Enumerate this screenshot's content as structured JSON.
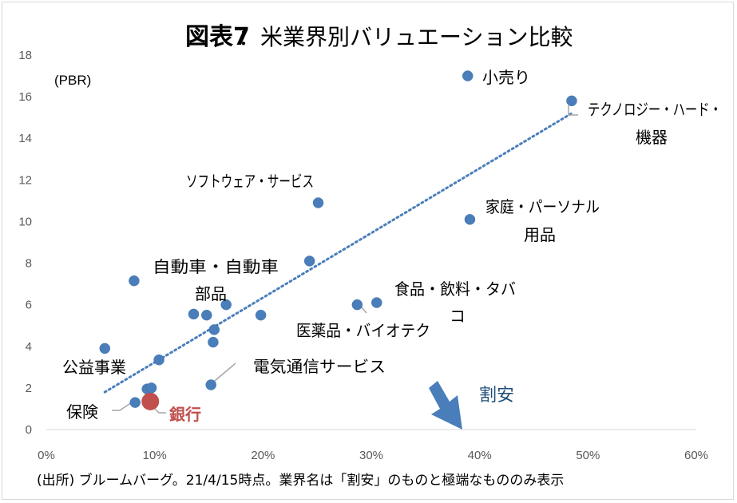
{
  "chart_data": {
    "type": "scatter",
    "title": "図表7",
    "subtitle": "：米業界別バリュエーション比較",
    "ylabel": "(PBR)",
    "xlim": [
      0,
      0.6
    ],
    "ylim": [
      0,
      18
    ],
    "x_ticks": [
      0,
      0.1,
      0.2,
      0.3,
      0.4,
      0.5,
      0.6
    ],
    "x_tick_labels": [
      "0%",
      "10%",
      "20%",
      "30%",
      "40%",
      "50%",
      "60%"
    ],
    "y_ticks": [
      0,
      2,
      4,
      6,
      8,
      10,
      12,
      14,
      16,
      18
    ],
    "y_tick_labels": [
      "0",
      "2",
      "4",
      "6",
      "8",
      "10",
      "12",
      "14",
      "16",
      "18"
    ],
    "grid": false,
    "points": [
      {
        "x": 0.389,
        "y": 17.0
      },
      {
        "x": 0.485,
        "y": 15.8
      },
      {
        "x": 0.251,
        "y": 10.9
      },
      {
        "x": 0.391,
        "y": 10.1
      },
      {
        "x": 0.243,
        "y": 8.1
      },
      {
        "x": 0.081,
        "y": 7.15
      },
      {
        "x": 0.166,
        "y": 6.0
      },
      {
        "x": 0.136,
        "y": 5.55
      },
      {
        "x": 0.148,
        "y": 5.5
      },
      {
        "x": 0.198,
        "y": 5.5
      },
      {
        "x": 0.287,
        "y": 6.0
      },
      {
        "x": 0.305,
        "y": 6.1
      },
      {
        "x": 0.155,
        "y": 4.8
      },
      {
        "x": 0.154,
        "y": 4.2
      },
      {
        "x": 0.054,
        "y": 3.9
      },
      {
        "x": 0.104,
        "y": 3.35
      },
      {
        "x": 0.093,
        "y": 1.95
      },
      {
        "x": 0.097,
        "y": 2.0
      },
      {
        "x": 0.152,
        "y": 2.15
      },
      {
        "x": 0.082,
        "y": 1.3
      }
    ],
    "highlight_point": {
      "x": 0.096,
      "y": 1.35,
      "color": "#c0504d"
    },
    "point_color": "#4a7ebb",
    "trendline": {
      "x": [
        0.054,
        0.485
      ],
      "y": [
        1.8,
        15.2
      ],
      "color": "#4a7ebb",
      "style": "dotted"
    },
    "annotations": {
      "retail": "小売り",
      "tech_hw_1": "テクノロジー・ハード・",
      "tech_hw_2": "機器",
      "software": "ソフトウェア・サービス",
      "household_1": "家庭・パーソナル",
      "household_2": "用品",
      "autos_1": "自動車・自動車",
      "autos_2": "部品",
      "food_1": "食品・飲料・タバ",
      "food_2": "コ",
      "pharma": "医薬品・バイオテク",
      "utilities": "公益事業",
      "telecom": "電気通信サービス",
      "insurance": "保険",
      "banks": "銀行",
      "cheap": "割安"
    },
    "source": "(出所) ブルームバーグ。21/4/15時点。業界名は「割安」のものと極端なもののみ表示"
  }
}
